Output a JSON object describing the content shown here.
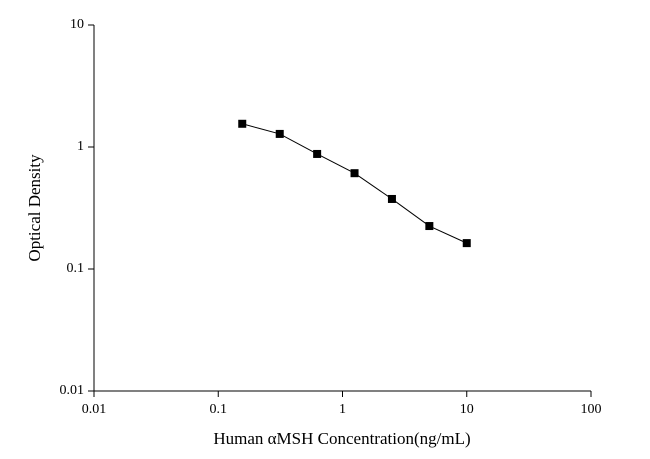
{
  "chart_data": {
    "type": "line",
    "x_label": "Human αMSH Concentration(ng/mL)",
    "y_label": "Optical Density",
    "x": [
      0.156,
      0.3125,
      0.625,
      1.25,
      2.5,
      5,
      10
    ],
    "series": [
      {
        "color": "#000000",
        "values": [
          1.55,
          1.28,
          0.877,
          0.61,
          0.375,
          0.225,
          0.163
        ]
      }
    ],
    "xlim": [
      0.01,
      100
    ],
    "ylim": [
      0.01,
      10
    ],
    "xticks": [
      0.01,
      0.1,
      1,
      10,
      100
    ],
    "yticks": [
      0.01,
      0.1,
      1,
      10
    ],
    "xscale": "log",
    "yscale": "log",
    "grid": false
  }
}
